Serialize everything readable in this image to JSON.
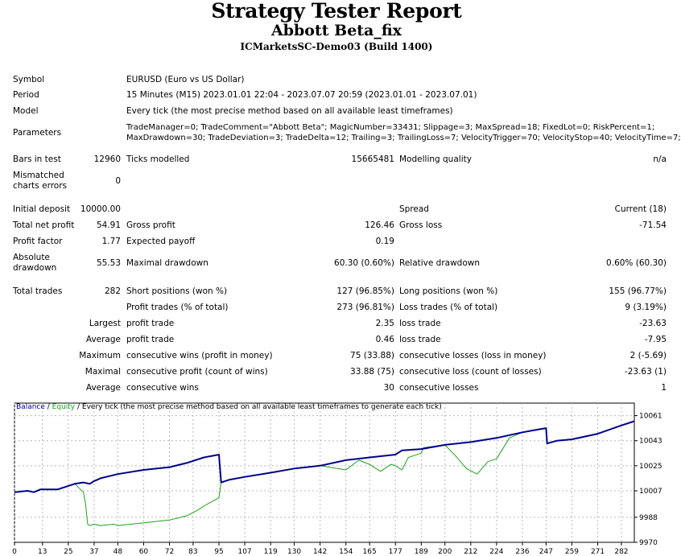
{
  "header": {
    "title": "Strategy Tester Report",
    "expert": "Abbott Beta_fix",
    "server": "ICMarketsSC-Demo03 (Build 1400)"
  },
  "settings": {
    "symbol_label": "Symbol",
    "symbol": "EURUSD (Euro vs US Dollar)",
    "period_label": "Period",
    "period": "15 Minutes (M15) 2023.01.01 22:04 - 2023.07.07 20:59 (2023.01.01 - 2023.07.01)",
    "model_label": "Model",
    "model": "Every tick (the most precise method based on all available least timeframes)",
    "params_label": "Parameters",
    "params_line1": "TradeManager=0; TradeComment=\"Abbott Beta\"; MagicNumber=33431; Slippage=3; MaxSpread=18; FixedLot=0; RiskPercent=1;",
    "params_line2": "MaxDrawdown=30; TradeDeviation=3; TradeDelta=12; Trailing=3; TrailingLoss=7; VelocityTrigger=70; VelocityStop=40; VelocityTime=7;"
  },
  "stats": {
    "bars_label": "Bars in test",
    "bars": "12960",
    "ticks_label": "Ticks modelled",
    "ticks": "15665481",
    "quality_label": "Modelling quality",
    "quality": "n/a",
    "mismatched_label1": "Mismatched",
    "mismatched_label2": "charts errors",
    "mismatched": "0",
    "deposit_label": "Initial deposit",
    "deposit": "10000.00",
    "spread_label": "Spread",
    "spread": "Current (18)",
    "net_profit_label": "Total net profit",
    "net_profit": "54.91",
    "gross_profit_label": "Gross profit",
    "gross_profit": "126.46",
    "gross_loss_label": "Gross loss",
    "gross_loss": "-71.54",
    "profit_factor_label": "Profit factor",
    "profit_factor": "1.77",
    "expected_payoff_label": "Expected payoff",
    "expected_payoff": "0.19",
    "abs_dd_label1": "Absolute",
    "abs_dd_label2": "drawdown",
    "abs_dd": "55.53",
    "max_dd_label": "Maximal drawdown",
    "max_dd": "60.30 (0.60%)",
    "rel_dd_label": "Relative drawdown",
    "rel_dd": "0.60% (60.30)",
    "total_trades_label": "Total trades",
    "total_trades": "282",
    "short_label": "Short positions (won %)",
    "short": "127 (96.85%)",
    "long_label": "Long positions (won %)",
    "long": "155 (96.77%)",
    "profit_trades_label": "Profit trades (% of total)",
    "profit_trades": "273 (96.81%)",
    "loss_trades_label": "Loss trades (% of total)",
    "loss_trades": "9 (3.19%)",
    "largest_label": "Largest",
    "largest_profit_label": "profit trade",
    "largest_profit": "2.35",
    "largest_loss_label": "loss trade",
    "largest_loss": "-23.63",
    "average_label": "Average",
    "average_profit_label": "profit trade",
    "average_profit": "0.46",
    "average_loss_label": "loss trade",
    "average_loss": "-7.95",
    "maximum_label": "Maximum",
    "max_cons_wins_label": "consecutive wins (profit in money)",
    "max_cons_wins": "75 (33.88)",
    "max_cons_losses_label": "consecutive losses (loss in money)",
    "max_cons_losses": "2 (-5.69)",
    "maximal_label": "Maximal",
    "maximal_cons_profit_label": "consecutive profit (count of wins)",
    "maximal_cons_profit": "33.88 (75)",
    "maximal_cons_loss_label": "consecutive loss (count of losses)",
    "maximal_cons_loss": "-23.63 (1)",
    "avg_label": "Average",
    "avg_cons_wins_label": "consecutive wins",
    "avg_cons_wins": "30",
    "avg_cons_losses_label": "consecutive losses",
    "avg_cons_losses": "1"
  },
  "chart_legend": {
    "balance": "Balance",
    "sep1": " / ",
    "equity": "Equity",
    "sep2": " / ",
    "note": "Every tick (the most precise method based on all available least timeframes to generate each tick)"
  },
  "chart_data": {
    "type": "line",
    "xlabel": "",
    "ylabel": "",
    "xlim": [
      0,
      288
    ],
    "ylim": [
      9970,
      10070
    ],
    "x_ticks": [
      0,
      13,
      25,
      37,
      48,
      60,
      72,
      83,
      95,
      107,
      119,
      130,
      142,
      154,
      165,
      177,
      189,
      200,
      212,
      224,
      236,
      247,
      259,
      271,
      282
    ],
    "y_ticks": [
      9970,
      9988,
      10007,
      10025,
      10043,
      10061
    ],
    "grid": true,
    "colors": {
      "balance": "#00008b",
      "equity": "#1ea01e"
    },
    "series": [
      {
        "name": "Balance",
        "x": [
          0,
          6,
          9,
          12,
          20,
          24,
          28,
          32,
          35,
          37,
          40,
          48,
          60,
          72,
          80,
          88,
          95,
          96,
          100,
          107,
          119,
          130,
          142,
          154,
          165,
          177,
          180,
          189,
          200,
          212,
          224,
          236,
          243,
          247,
          247.5,
          252,
          259,
          271,
          282,
          288
        ],
        "y": [
          10006,
          10007,
          10006,
          10008,
          10008,
          10010,
          10012,
          10013,
          10012,
          10014,
          10016,
          10019,
          10022,
          10024,
          10027,
          10031,
          10033,
          10013,
          10015,
          10017,
          10020,
          10023,
          10025,
          10029,
          10031,
          10033,
          10036,
          10037,
          10040,
          10042,
          10045,
          10049,
          10051,
          10052,
          10041,
          10043,
          10044,
          10048,
          10054,
          10057
        ]
      },
      {
        "name": "Equity",
        "x": [
          0,
          6,
          9,
          12,
          20,
          24,
          28,
          32,
          33,
          34,
          35,
          37,
          40,
          46,
          48,
          60,
          72,
          80,
          85,
          88,
          95,
          96,
          100,
          107,
          119,
          130,
          142,
          154,
          160,
          165,
          170,
          175,
          177,
          180,
          183,
          189,
          190,
          200,
          205,
          210,
          215,
          220,
          224,
          230,
          236,
          243,
          247,
          247.5,
          252,
          259,
          271,
          282,
          288
        ],
        "y": [
          10006,
          10007,
          10006,
          10008,
          10008,
          10010,
          10012,
          10006,
          9998,
          9983,
          9982,
          9983,
          9982,
          9983,
          9982,
          9984,
          9986,
          9989,
          9993,
          9996,
          10002,
          10013,
          10015,
          10017,
          10020,
          10023,
          10025,
          10022,
          10029,
          10026,
          10021,
          10026,
          10025,
          10022,
          10031,
          10034,
          10038,
          10040,
          10032,
          10023,
          10019,
          10028,
          10030,
          10045,
          10049,
          10051,
          10052,
          10041,
          10043,
          10044,
          10048,
          10054,
          10057
        ]
      }
    ]
  }
}
